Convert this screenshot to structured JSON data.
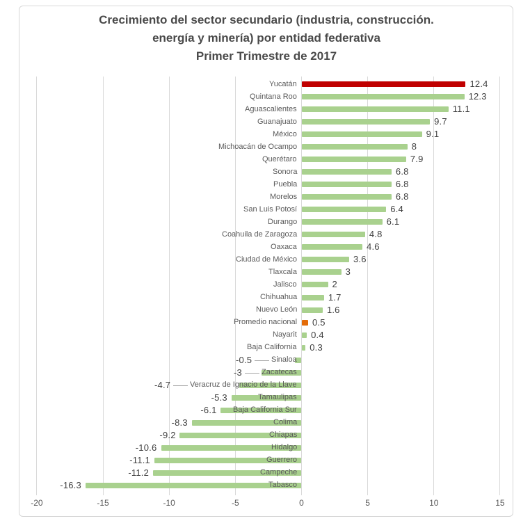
{
  "title": {
    "line1": "Crecimiento del sector secundario (industria, construcción.",
    "line2": "energía y minería) por entidad federativa",
    "line3": "Primer Trimestre de 2017"
  },
  "colors": {
    "bar_default": "#a9d18e",
    "bar_highlight": "#c00000",
    "bar_national_average": "#e36c09",
    "gridline": "#d9d9d9",
    "frame_border": "#d7d7d7",
    "category_label": "#595959",
    "value_label": "#404040",
    "axis_tick_label": "#595959",
    "title_text": "#4a4a4a",
    "leader_line": "#a6a6a6"
  },
  "chart_data": {
    "type": "bar",
    "orientation": "horizontal",
    "title": "Crecimiento del sector secundario (industria, construcción. energía y minería) por entidad federativa — Primer Trimestre de 2017",
    "xlabel": "",
    "ylabel": "",
    "xlim": [
      -20,
      15
    ],
    "grid": true,
    "legend": "none",
    "x_ticks": [
      -20,
      -15,
      -10,
      -5,
      0,
      5,
      10,
      15
    ],
    "x_tick_labels": [
      "-20",
      "-15",
      "-10",
      "-5",
      "0",
      "5",
      "10",
      "15"
    ],
    "rows": [
      {
        "label": "Yucatán",
        "value": 12.4,
        "display": "12.4",
        "color": "#c00000"
      },
      {
        "label": "Quintana Roo",
        "value": 12.3,
        "display": "12.3"
      },
      {
        "label": "Aguascalientes",
        "value": 11.1,
        "display": "11.1"
      },
      {
        "label": "Guanajuato",
        "value": 9.7,
        "display": "9.7"
      },
      {
        "label": "México",
        "value": 9.1,
        "display": "9.1"
      },
      {
        "label": "Michoacán de Ocampo",
        "value": 8,
        "display": "8"
      },
      {
        "label": "Querétaro",
        "value": 7.9,
        "display": "7.9"
      },
      {
        "label": "Sonora",
        "value": 6.8,
        "display": "6.8"
      },
      {
        "label": "Puebla",
        "value": 6.8,
        "display": "6.8"
      },
      {
        "label": "Morelos",
        "value": 6.8,
        "display": "6.8"
      },
      {
        "label": "San Luis Potosí",
        "value": 6.4,
        "display": "6.4"
      },
      {
        "label": "Durango",
        "value": 6.1,
        "display": "6.1"
      },
      {
        "label": "Coahuila de Zaragoza",
        "value": 4.8,
        "display": "4.8"
      },
      {
        "label": "Oaxaca",
        "value": 4.6,
        "display": "4.6"
      },
      {
        "label": "Ciudad de México",
        "value": 3.6,
        "display": "3.6"
      },
      {
        "label": "Tlaxcala",
        "value": 3,
        "display": "3"
      },
      {
        "label": "Jalisco",
        "value": 2,
        "display": "2"
      },
      {
        "label": "Chihuahua",
        "value": 1.7,
        "display": "1.7"
      },
      {
        "label": "Nuevo León",
        "value": 1.6,
        "display": "1.6"
      },
      {
        "label": "Promedio nacional",
        "value": 0.5,
        "display": "0.5",
        "color": "#e36c09"
      },
      {
        "label": "Nayarit",
        "value": 0.4,
        "display": "0.4"
      },
      {
        "label": "Baja California",
        "value": 0.3,
        "display": "0.3"
      },
      {
        "label": "Sinaloa",
        "value": -0.5,
        "display": "-0.5"
      },
      {
        "label": "Zacatecas",
        "value": -3,
        "display": "-3"
      },
      {
        "label": "Veracruz de Ignacio de la Llave",
        "value": -4.7,
        "display": "-4.7"
      },
      {
        "label": "Tamaulipas",
        "value": -5.3,
        "display": "-5.3"
      },
      {
        "label": "Baja California Sur",
        "value": -6.1,
        "display": "-6.1"
      },
      {
        "label": "Colima",
        "value": -8.3,
        "display": "-8.3"
      },
      {
        "label": "Chiapas",
        "value": -9.2,
        "display": "-9.2"
      },
      {
        "label": "Hidalgo",
        "value": -10.6,
        "display": "-10.6"
      },
      {
        "label": "Guerrero",
        "value": -11.1,
        "display": "-11.1"
      },
      {
        "label": "Campeche",
        "value": -11.2,
        "display": "-11.2"
      },
      {
        "label": "Tabasco",
        "value": -16.3,
        "display": "-16.3"
      }
    ]
  }
}
